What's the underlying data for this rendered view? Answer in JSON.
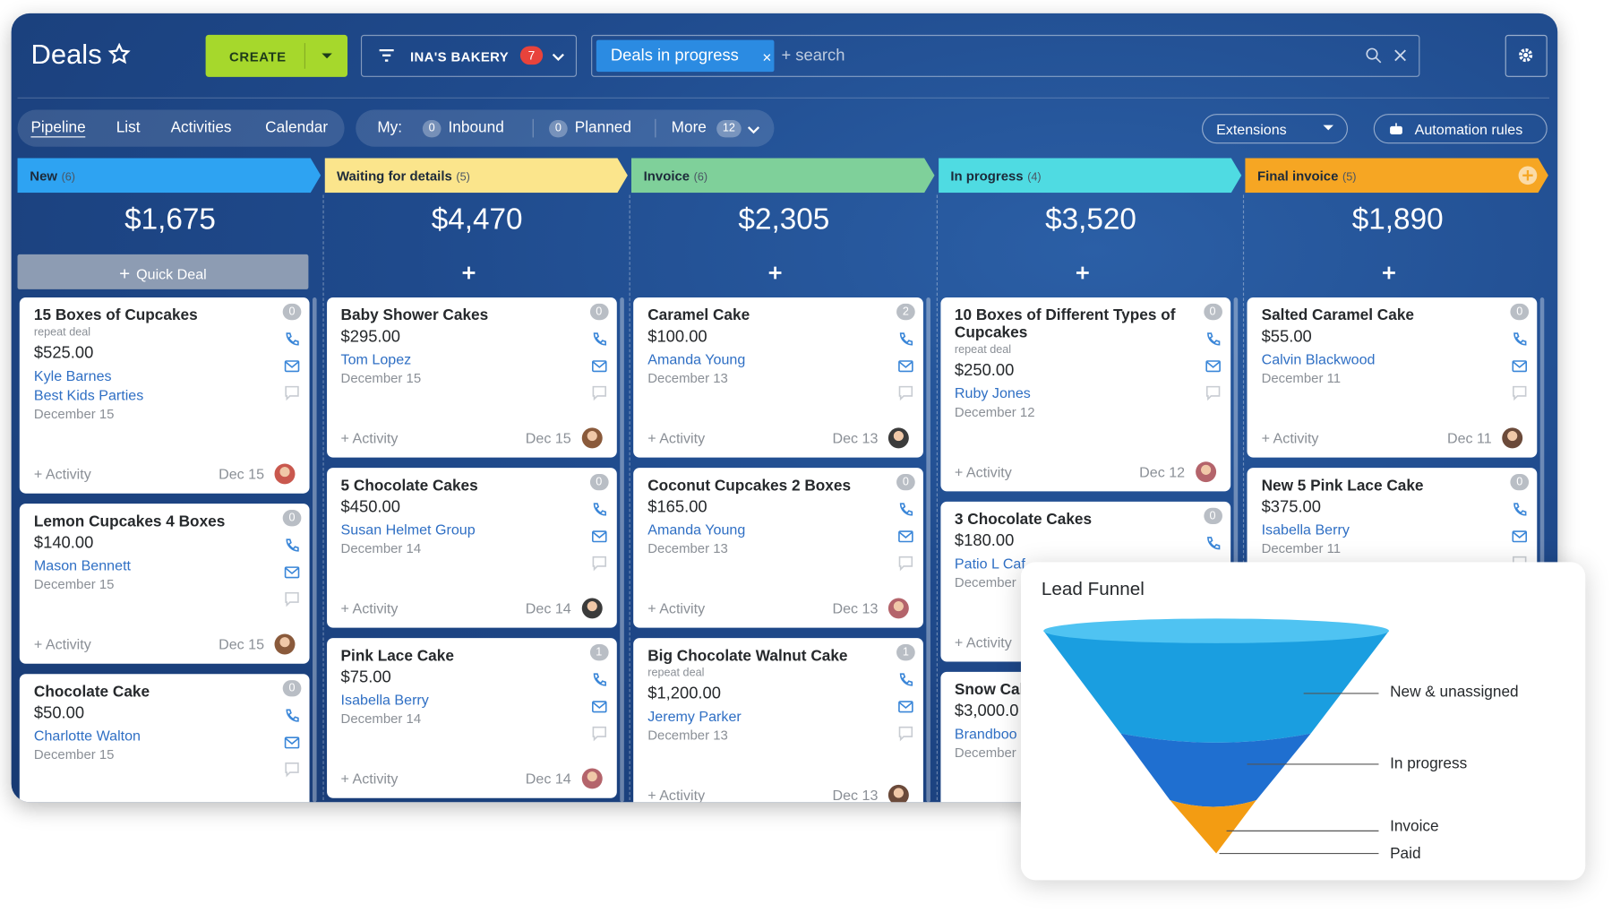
{
  "header": {
    "title": "Deals",
    "create": "CREATE",
    "filter": "INA'S BAKERY",
    "filter_count": "7",
    "search_chip": "Deals in progress",
    "search_placeholder": "+ search"
  },
  "tabs": [
    "Pipeline",
    "List",
    "Activities",
    "Calendar"
  ],
  "my_filter": {
    "label": "My:",
    "items": [
      {
        "count": "0",
        "label": "Inbound"
      },
      {
        "count": "0",
        "label": "Planned"
      },
      {
        "label": "More",
        "count": "12"
      }
    ]
  },
  "buttons": {
    "extensions": "Extensions",
    "automation": "Automation rules"
  },
  "activity_label": "+ Activity",
  "quick_deal": "Quick Deal",
  "stages": [
    {
      "name": "New",
      "count": "(6)",
      "total": "$1,675",
      "color": "#2ea3f2",
      "deals": [
        {
          "title": "15 Boxes of Cupcakes",
          "note": "repeat deal",
          "value": "$525.00",
          "contacts": [
            "Kyle Barnes",
            "Best Kids Parties"
          ],
          "date": "December 15",
          "badge": "0",
          "activity_date": "Dec 15"
        },
        {
          "title": "Lemon Cupcakes 4 Boxes",
          "value": "$140.00",
          "contacts": [
            "Mason Bennett"
          ],
          "date": "December 15",
          "badge": "0",
          "activity_date": "Dec 15"
        },
        {
          "title": "Chocolate Cake",
          "value": "$50.00",
          "contacts": [
            "Charlotte Walton"
          ],
          "date": "December 15",
          "badge": "0"
        }
      ]
    },
    {
      "name": "Waiting for details",
      "count": "(5)",
      "total": "$4,470",
      "color": "#fbe58c",
      "deals": [
        {
          "title": "Baby Shower Cakes",
          "value": "$295.00",
          "contacts": [
            "Tom Lopez"
          ],
          "date": "December 15",
          "badge": "0",
          "activity_date": "Dec 15"
        },
        {
          "title": "5 Chocolate Cakes",
          "value": "$450.00",
          "contacts": [
            "Susan Helmet Group"
          ],
          "date": "December 14",
          "badge": "0",
          "activity_date": "Dec 14"
        },
        {
          "title": "Pink Lace Cake",
          "value": "$75.00",
          "contacts": [
            "Isabella Berry"
          ],
          "date": "December 14",
          "badge": "1",
          "activity_date": "Dec 14"
        }
      ]
    },
    {
      "name": "Invoice",
      "count": "(6)",
      "total": "$2,305",
      "color": "#7fd09a",
      "deals": [
        {
          "title": "Caramel Cake",
          "value": "$100.00",
          "contacts": [
            "Amanda Young"
          ],
          "date": "December 13",
          "badge": "2",
          "activity_date": "Dec 13"
        },
        {
          "title": "Coconut Cupcakes 2 Boxes",
          "value": "$165.00",
          "contacts": [
            "Amanda Young"
          ],
          "date": "December 13",
          "badge": "0",
          "activity_date": "Dec 13"
        },
        {
          "title": "Big Chocolate Walnut Cake",
          "note": "repeat deal",
          "value": "$1,200.00",
          "contacts": [
            "Jeremy Parker"
          ],
          "date": "December 13",
          "badge": "1",
          "activity_date": "Dec 13"
        }
      ]
    },
    {
      "name": "In progress",
      "count": "(4)",
      "total": "$3,520",
      "color": "#4fdbe2",
      "deals": [
        {
          "title": "10 Boxes of Different Types of Cupcakes",
          "note": "repeat deal",
          "value": "$250.00",
          "contacts": [
            "Ruby Jones"
          ],
          "date": "December 12",
          "badge": "0",
          "activity_date": "Dec 12"
        },
        {
          "title": "3 Chocolate Cakes",
          "value": "$180.00",
          "contacts": [
            "Patio L Caf"
          ],
          "date": "December",
          "badge": "0"
        },
        {
          "title": "Snow Cak",
          "value": "$3,000.0",
          "contacts": [
            "Brandboo"
          ],
          "date": "December"
        }
      ]
    },
    {
      "name": "Final invoice",
      "count": "(5)",
      "total": "$1,890",
      "color": "#f6a623",
      "deals": [
        {
          "title": "Salted Caramel Cake",
          "value": "$55.00",
          "contacts": [
            "Calvin Blackwood"
          ],
          "date": "December 11",
          "badge": "0",
          "activity_date": "Dec 11"
        },
        {
          "title": "New 5 Pink Lace Cake",
          "value": "$375.00",
          "contacts": [
            "Isabella Berry"
          ],
          "date": "December 11",
          "badge": "0"
        }
      ]
    }
  ],
  "funnel": {
    "title": "Lead Funnel",
    "labels": [
      "New & unassigned",
      "In progress",
      "Invoice",
      "Paid"
    ]
  }
}
